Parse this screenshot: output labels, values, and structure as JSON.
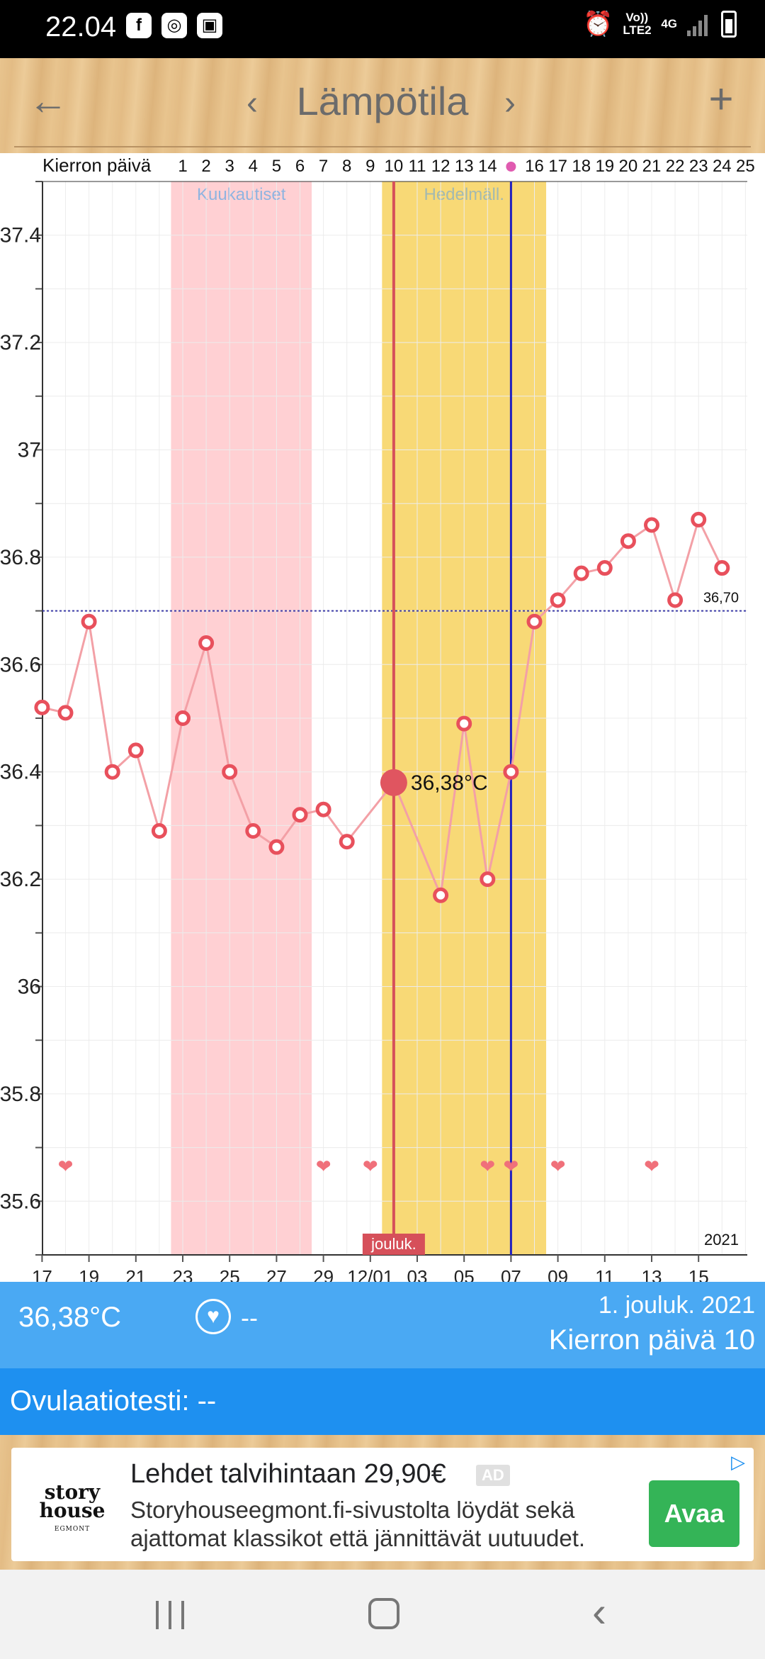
{
  "status_bar": {
    "time": "22.04",
    "left_icons": [
      "facebook-icon",
      "instagram-icon",
      "app-icon"
    ],
    "right_icons": [
      "alarm-icon",
      "volte-icon",
      "network-4g-icon",
      "signal-icon",
      "battery-charging-icon"
    ],
    "volte_label": "Vo)) LTE2",
    "network_label": "4G"
  },
  "app_bar": {
    "title": "Lämpötila",
    "back_icon": "arrow-left-icon",
    "prev_icon": "chevron-left-icon",
    "next_icon": "chevron-right-icon",
    "add_icon": "plus-icon"
  },
  "chart_data": {
    "type": "line",
    "cycle_day_label": "Kierron päivä",
    "cycle_days": [
      "1",
      "2",
      "3",
      "4",
      "5",
      "6",
      "7",
      "8",
      "9",
      "10",
      "11",
      "12",
      "13",
      "14",
      "",
      "16",
      "17",
      "18",
      "19",
      "20",
      "21",
      "22",
      "23",
      "24",
      "25"
    ],
    "ovulation_marker_day": 15,
    "x_tick_labels": [
      "17",
      "19",
      "21",
      "23",
      "25",
      "27",
      "29",
      "12/01",
      "03",
      "05",
      "07",
      "09",
      "11",
      "13",
      "15"
    ],
    "y_ticks": [
      "37.4",
      "37.2",
      "37",
      "36.8",
      "36.6",
      "36.4",
      "36.2",
      "36",
      "35.8",
      "35.6"
    ],
    "ylim": [
      35.5,
      37.5
    ],
    "year_label": "2021",
    "month_label": "jouluk.",
    "periods": [
      {
        "label": "Kuukautiset",
        "start_day": 1,
        "end_day": 6,
        "color": "#ffd0d3"
      },
      {
        "label": "Hedelmäll.",
        "start_day": 10,
        "end_day": 16,
        "color": "#f8d976"
      }
    ],
    "coverline": {
      "value": 36.7,
      "label": "36,70"
    },
    "selected": {
      "day": 10,
      "value": 36.38,
      "label": "36,38°C"
    },
    "ovulation_line_day": 15,
    "series": [
      {
        "days": [
          -5,
          -4,
          -3,
          -2,
          -1,
          0,
          1,
          2,
          3,
          4,
          5,
          6,
          7,
          8,
          9,
          10,
          11,
          12,
          13,
          14,
          15,
          16,
          17,
          18,
          19,
          20,
          21,
          22,
          23,
          24
        ],
        "values": [
          36.52,
          36.51,
          36.68,
          36.4,
          36.44,
          36.29,
          36.5,
          36.64,
          36.4,
          36.29,
          36.26,
          36.32,
          36.33,
          36.27,
          null,
          36.38,
          null,
          36.17,
          36.49,
          36.2,
          36.4,
          36.68,
          36.72,
          36.77,
          36.78,
          36.83,
          36.86,
          36.72,
          36.87,
          36.78
        ]
      }
    ],
    "heart_days": [
      -4,
      7,
      9,
      14,
      15,
      17,
      21
    ]
  },
  "info_panel": {
    "temperature": "36,38°C",
    "heart_value": "--",
    "date": "1. jouluk. 2021",
    "cycle_day": "Kierron päivä 10"
  },
  "ovulation_test": {
    "text": "Ovulaatiotesti: --"
  },
  "ad": {
    "logo_line1": "story",
    "logo_line2": "house",
    "logo_sub": "EGMONT",
    "title": "Lehdet talvihintaan 29,90€",
    "badge": "AD",
    "description": "Storyhouseegmont.fi-sivustolta löydät sekä ajattomat klassikot että jännittävät uutuudet.",
    "cta": "Avaa"
  },
  "nav_bar": {
    "icons": [
      "recent-apps-icon",
      "home-icon",
      "back-icon"
    ]
  }
}
